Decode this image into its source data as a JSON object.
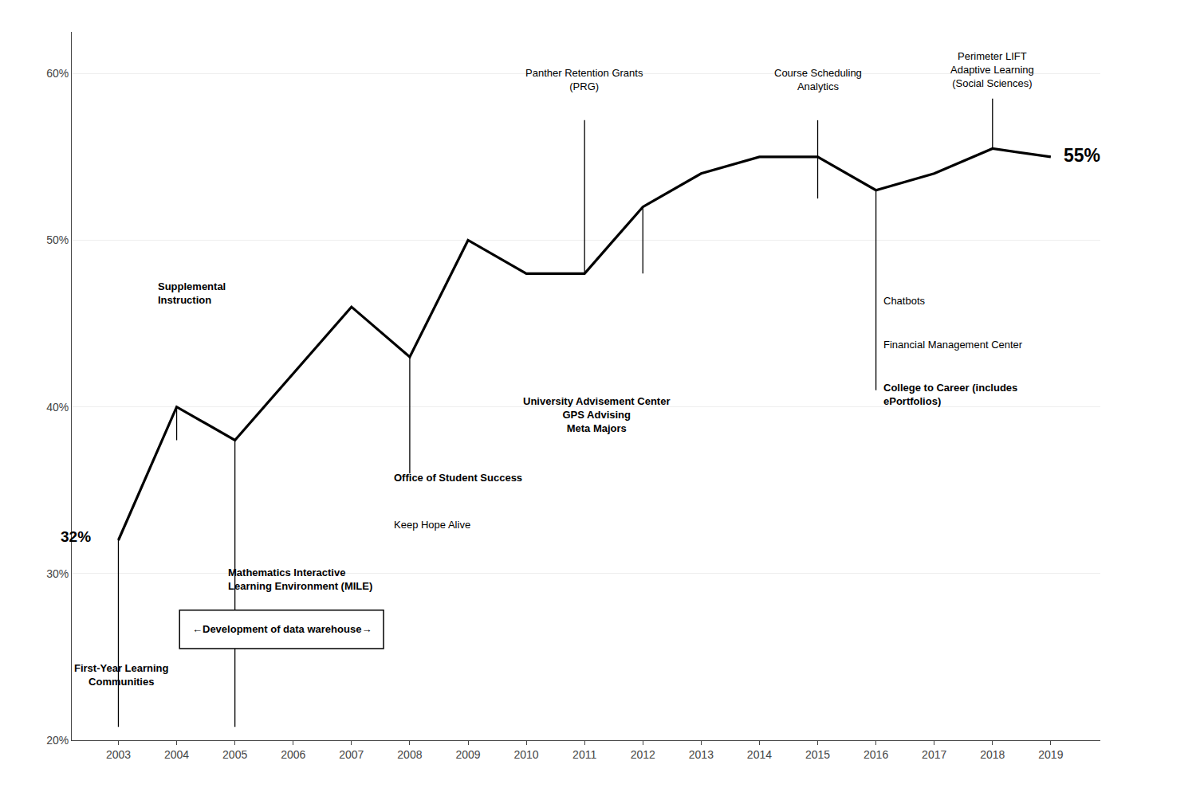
{
  "chart_data": {
    "type": "line",
    "x": [
      2003,
      2004,
      2005,
      2006,
      2007,
      2008,
      2009,
      2010,
      2011,
      2012,
      2013,
      2014,
      2015,
      2016,
      2017,
      2018,
      2019
    ],
    "values": [
      0.32,
      0.4,
      0.38,
      0.42,
      0.46,
      0.43,
      0.5,
      0.48,
      0.48,
      0.52,
      0.54,
      0.55,
      0.55,
      0.53,
      0.54,
      0.555,
      0.55
    ],
    "color": "#000000",
    "xlim": [
      2002.2,
      2019.85
    ],
    "xticks": [
      2003,
      2004,
      2005,
      2006,
      2007,
      2008,
      2009,
      2010,
      2011,
      2012,
      2013,
      2014,
      2015,
      2016,
      2017,
      2018,
      2019
    ],
    "ylim": [
      0.2,
      0.625
    ],
    "yticks": [
      {
        "value": 0.2,
        "label": "20%"
      },
      {
        "value": 0.3,
        "label": "30%"
      },
      {
        "value": 0.4,
        "label": "40%"
      },
      {
        "value": 0.5,
        "label": "50%"
      },
      {
        "value": 0.6,
        "label": "60%"
      }
    ],
    "grid": true,
    "vlines": [
      {
        "x": 2003,
        "ymin": 0.208,
        "ymax": 0.32
      },
      {
        "x": 2004,
        "ymin": 0.38,
        "ymax": 0.4
      },
      {
        "x": 2005,
        "ymin": 0.208,
        "ymax": 0.38
      },
      {
        "x": 2008,
        "ymin": 0.36,
        "ymax": 0.43
      },
      {
        "x": 2011,
        "ymin": 0.48,
        "ymax": 0.572
      },
      {
        "x": 2012,
        "ymin": 0.48,
        "ymax": 0.52
      },
      {
        "x": 2015,
        "ymin": 0.525,
        "ymax": 0.572
      },
      {
        "x": 2016,
        "ymin": 0.41,
        "ymax": 0.53
      },
      {
        "x": 2018,
        "ymin": 0.555,
        "ymax": 0.585
      }
    ],
    "annotations": [
      {
        "x": 2002.55,
        "y": 0.322,
        "text": "32%"
      },
      {
        "x": 2019.2,
        "y": 0.551,
        "text": "55%"
      },
      {
        "x": 2011.0,
        "y": 0.605,
        "text": "Panther Retention Grants\n(PRG)"
      },
      {
        "x": 2015.0,
        "y": 0.605,
        "text": "Course Scheduling\nAnalytics"
      },
      {
        "x": 2018.0,
        "y": 0.615,
        "text": "Perimeter LIFT\nAdaptive Learning\n(Social Sciences)"
      },
      {
        "x": 2003.65,
        "y": 0.477,
        "text": "Supplemental\nInstruction"
      },
      {
        "x": 2011.2,
        "y": 0.408,
        "text": "University Advisement Center\nGPS Advising\nMeta Majors"
      },
      {
        "x": 2016.1,
        "y": 0.468,
        "text": "Chatbots"
      },
      {
        "x": 2016.1,
        "y": 0.442,
        "text": "Financial Management Center"
      },
      {
        "x": 2016.1,
        "y": 0.416,
        "text": "College to Career (includes\nePortfolios)"
      },
      {
        "x": 2007.7,
        "y": 0.362,
        "text": "Office of Student Success"
      },
      {
        "x": 2007.7,
        "y": 0.334,
        "text": "Keep Hope Alive"
      },
      {
        "x": 2004.85,
        "y": 0.305,
        "text": "Mathematics Interactive\nLearning Environment (MILE)"
      },
      {
        "x": 2003.05,
        "y": 0.248,
        "text": "First-Year Learning\nCommunities"
      }
    ],
    "box": {
      "text": "←Development of data warehouse→",
      "x": [
        2004.05,
        2007.55
      ],
      "y": [
        0.255,
        0.278
      ]
    }
  }
}
